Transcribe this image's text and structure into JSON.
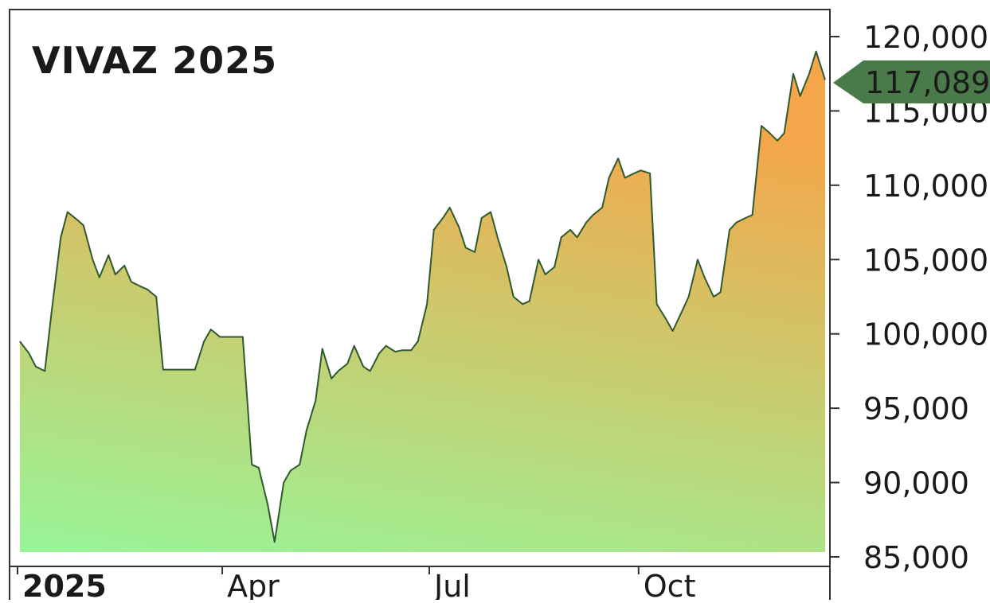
{
  "chart_data": {
    "type": "area",
    "title": "VIVAZ 2025",
    "xlabel": "",
    "ylabel": "",
    "ylim": [
      85000,
      120000
    ],
    "y_ticks": [
      "120,000",
      "115,000",
      "110,000",
      "105,000",
      "100,000",
      "95,000",
      "90,000",
      "85,000"
    ],
    "x_ticks": [
      "2025",
      "Apr",
      "Jul",
      "Oct"
    ],
    "last_value_label": "117,089",
    "grid": false,
    "y_axis_side": "right",
    "colors": {
      "line": "#2f5a2f",
      "fill_bottom": "#98f598",
      "fill_top": "#f5a64a",
      "marker": "#4a7a4a"
    },
    "series": [
      {
        "x": [
          "2025-01-02",
          "2025-01-06",
          "2025-01-09",
          "2025-01-13",
          "2025-01-16",
          "2025-01-20",
          "2025-01-23",
          "2025-01-27",
          "2025-01-30",
          "2025-02-03",
          "2025-02-06",
          "2025-02-10",
          "2025-02-13",
          "2025-02-17",
          "2025-02-20",
          "2025-02-24",
          "2025-02-27",
          "2025-03-03",
          "2025-03-06",
          "2025-03-10",
          "2025-03-13",
          "2025-03-17",
          "2025-03-20",
          "2025-03-24",
          "2025-03-27",
          "2025-03-31",
          "2025-04-03",
          "2025-04-07",
          "2025-04-10",
          "2025-04-14",
          "2025-04-17",
          "2025-04-21",
          "2025-04-24",
          "2025-04-28",
          "2025-05-01",
          "2025-05-05",
          "2025-05-08",
          "2025-05-12",
          "2025-05-15",
          "2025-05-19",
          "2025-05-22",
          "2025-05-26",
          "2025-05-29",
          "2025-06-02",
          "2025-06-05",
          "2025-06-09",
          "2025-06-12",
          "2025-06-16",
          "2025-06-19",
          "2025-06-23",
          "2025-06-26",
          "2025-06-30",
          "2025-07-03",
          "2025-07-07",
          "2025-07-10",
          "2025-07-14",
          "2025-07-17",
          "2025-07-21",
          "2025-07-24",
          "2025-07-28",
          "2025-07-31",
          "2025-08-04",
          "2025-08-07",
          "2025-08-11",
          "2025-08-14",
          "2025-08-18",
          "2025-08-21",
          "2025-08-25",
          "2025-08-28",
          "2025-09-01",
          "2025-09-04",
          "2025-09-08",
          "2025-09-11",
          "2025-09-15",
          "2025-09-18",
          "2025-09-22",
          "2025-09-25",
          "2025-09-29",
          "2025-10-02",
          "2025-10-06",
          "2025-10-09",
          "2025-10-13",
          "2025-10-16",
          "2025-10-20",
          "2025-10-23",
          "2025-10-27",
          "2025-10-30",
          "2025-11-03",
          "2025-11-06",
          "2025-11-10",
          "2025-11-13",
          "2025-11-17",
          "2025-11-20",
          "2025-11-24",
          "2025-11-27",
          "2025-12-01",
          "2025-12-04",
          "2025-12-08",
          "2025-12-11",
          "2025-12-15",
          "2025-12-18",
          "2025-12-22"
        ],
        "values": [
          99500,
          98700,
          97800,
          97500,
          101500,
          106500,
          108200,
          107700,
          107300,
          105000,
          103800,
          105300,
          104000,
          104600,
          103500,
          103200,
          103000,
          102500,
          97600,
          97600,
          97600,
          97600,
          97600,
          99500,
          100300,
          99800,
          99800,
          99800,
          99800,
          91200,
          91000,
          88500,
          86000,
          90000,
          90800,
          91200,
          93500,
          95500,
          99000,
          97000,
          97500,
          98000,
          99200,
          97800,
          97500,
          98700,
          99200,
          98800,
          98900,
          98900,
          99500,
          102000,
          107000,
          107800,
          108500,
          107200,
          105800,
          105500,
          107800,
          108200,
          106500,
          104500,
          102500,
          102000,
          102200,
          105000,
          104000,
          104500,
          106500,
          107000,
          106500,
          107500,
          108000,
          108500,
          110500,
          111800,
          110500,
          110800,
          111000,
          110800,
          102000,
          101000,
          100200,
          101500,
          102500,
          105000,
          103800,
          102500,
          102800,
          107000,
          107500,
          107800,
          108000,
          114000,
          113600,
          113000,
          113500,
          117500,
          116000,
          117500,
          119000,
          117089
        ]
      }
    ]
  }
}
